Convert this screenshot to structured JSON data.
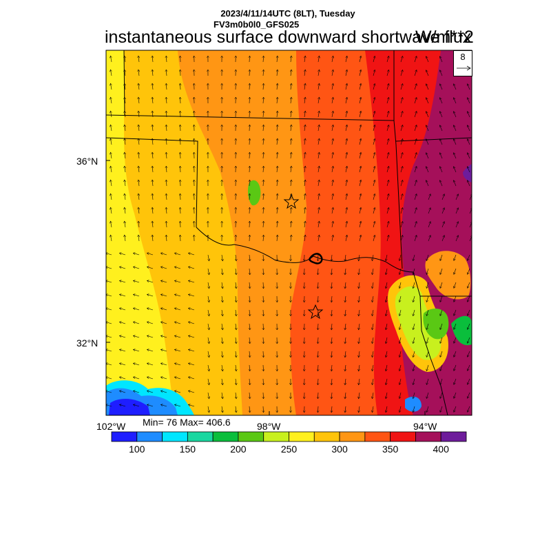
{
  "header": {
    "datetime": "2023/4/11/14UTC (8LT), Tuesday",
    "model": "FV3m0b0l0_GFS025",
    "title": "instantaneous surface downward shortwave flux",
    "units": "W/m**2"
  },
  "map": {
    "lat_ticks": [
      "36°N",
      "32°N"
    ],
    "lon_ticks": [
      "102°W",
      "98°W",
      "94°W"
    ],
    "stations": [
      "station-okc",
      "station-dfw"
    ]
  },
  "stats": {
    "min": 76,
    "max": 406.6,
    "text": "Min= 76 Max= 406.6"
  },
  "wind_reference": {
    "value": "8"
  },
  "colorbar": {
    "colors": [
      "#1e1eff",
      "#1e8cff",
      "#00e6ff",
      "#19d7a0",
      "#0abe3c",
      "#5ac814",
      "#c8f01e",
      "#fff01e",
      "#ffc40a",
      "#ff9614",
      "#ff5514",
      "#f01414",
      "#a5105a",
      "#6e1c9b"
    ],
    "tick_labels": [
      "100",
      "150",
      "200",
      "250",
      "300",
      "350",
      "400"
    ]
  }
}
